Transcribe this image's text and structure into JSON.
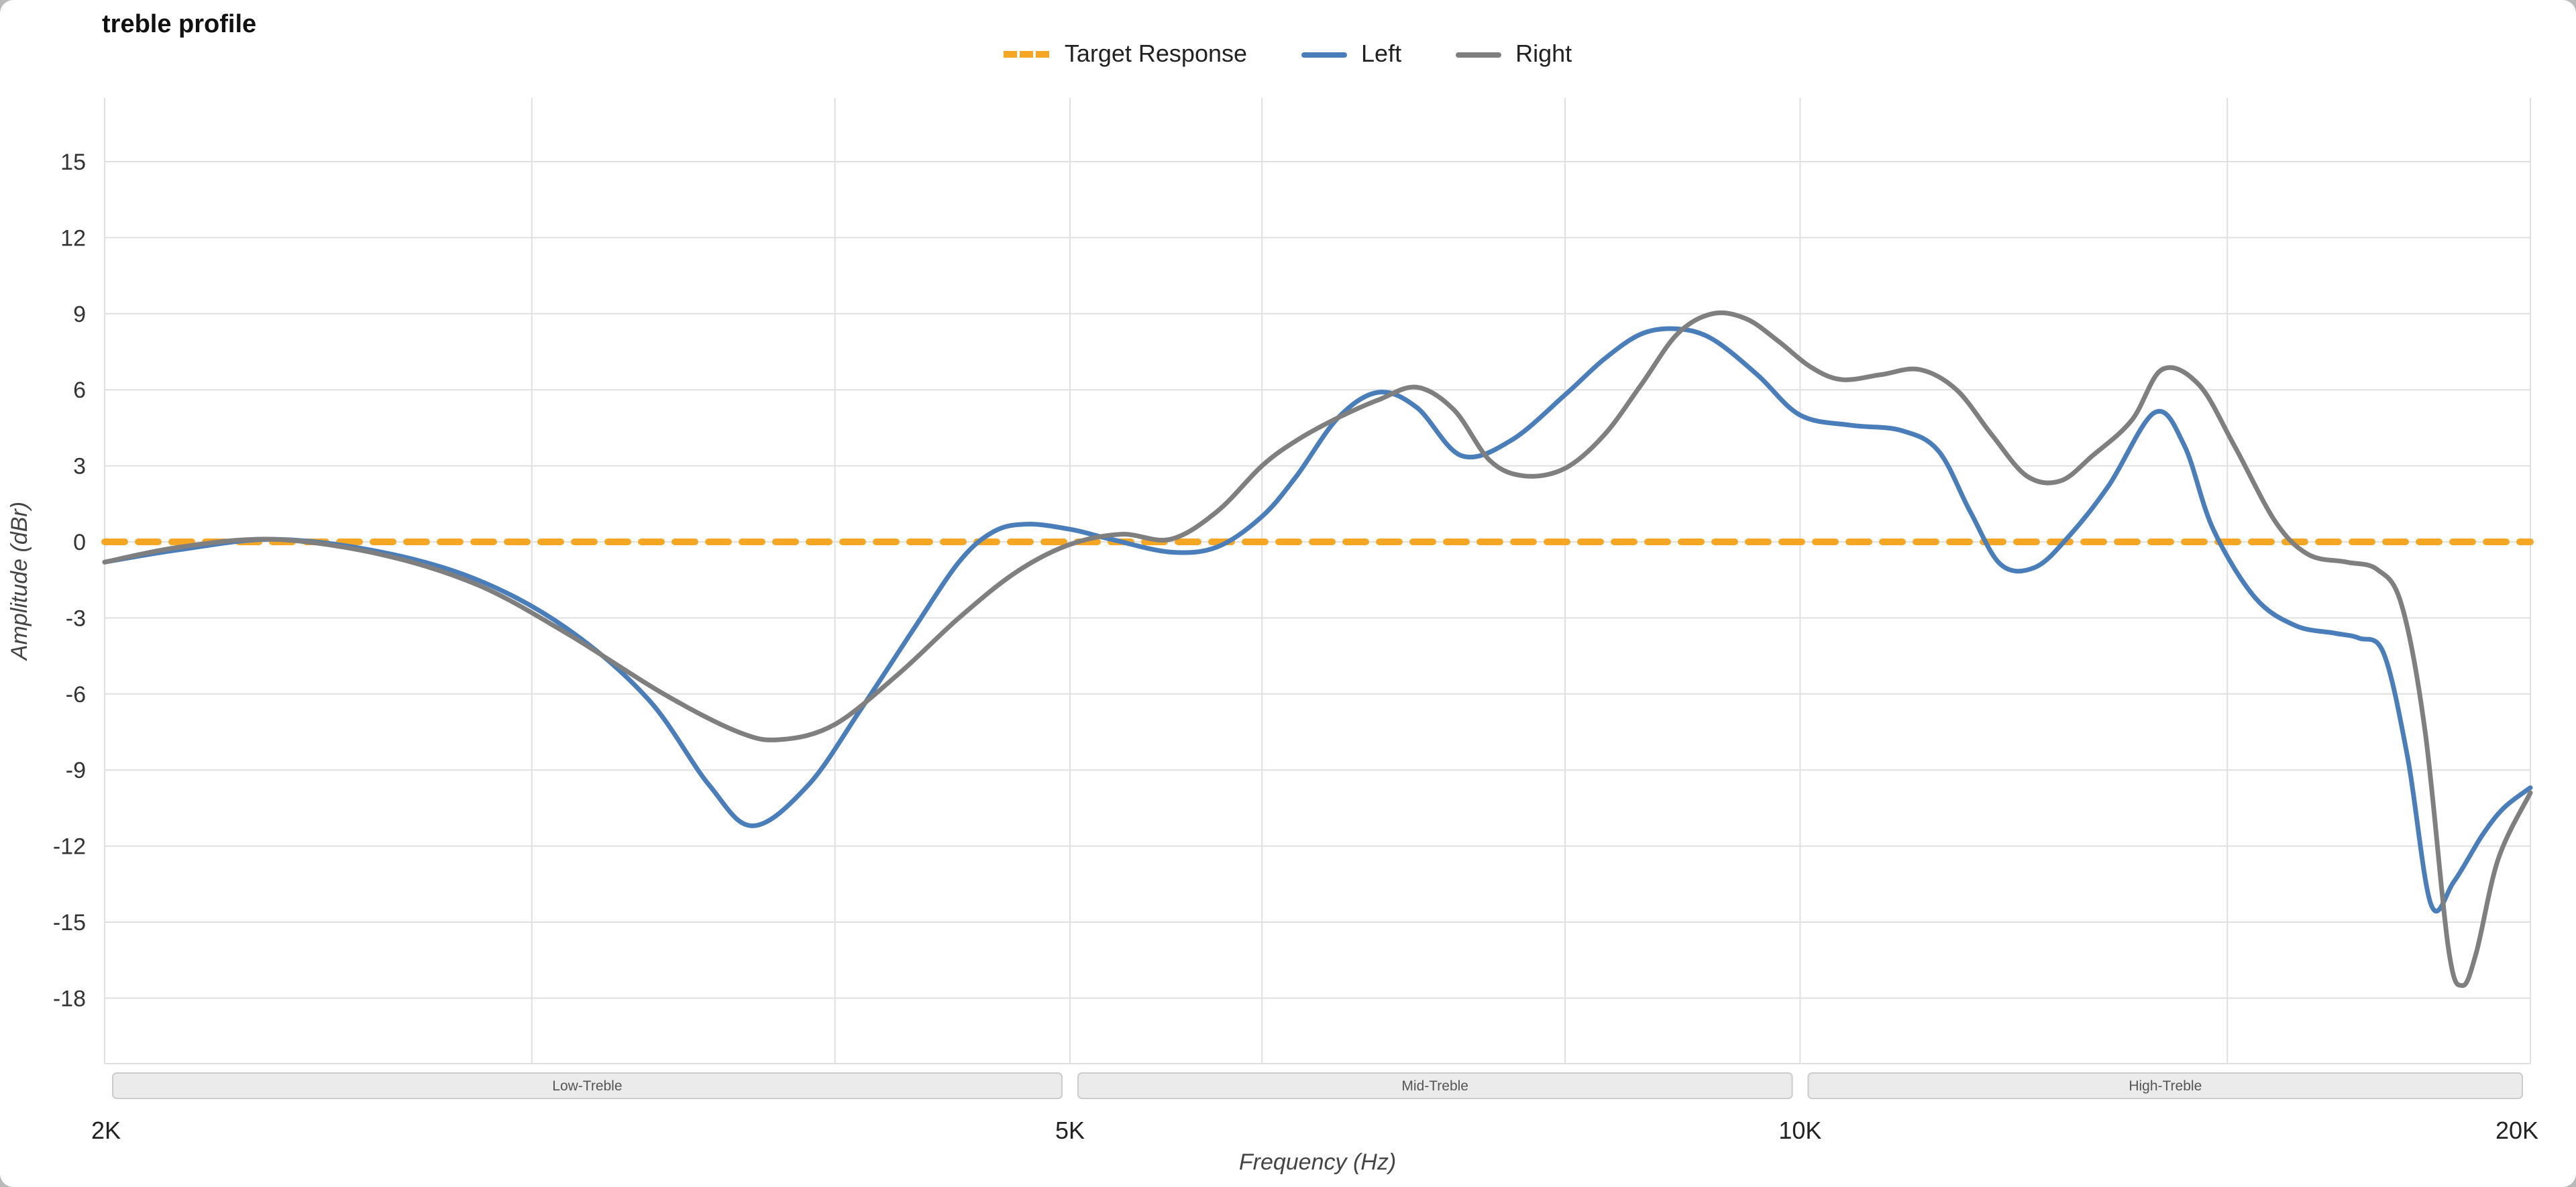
{
  "page": {
    "title": "treble profile"
  },
  "colors": {
    "target": "#F5A623",
    "left": "#4A7EBB",
    "right": "#7F7F7F",
    "gridline": "#E0E0E0",
    "band_fill": "#EBEBEB",
    "band_border": "#CCCCCC",
    "background": "#FFFFFF"
  },
  "legend": {
    "items": [
      {
        "label": "Target Response",
        "color": "#F5A623",
        "line_style": "dashed"
      },
      {
        "label": "Left",
        "color": "#4A7EBB",
        "line_style": "solid"
      },
      {
        "label": "Right",
        "color": "#7F7F7F",
        "line_style": "solid"
      }
    ]
  },
  "chart_data": {
    "type": "line",
    "title": "treble profile",
    "xlabel": "Frequency (Hz)",
    "ylabel": "Amplitude (dBr)",
    "x_scale": "log",
    "grid": true,
    "legend_position": "top-center",
    "x_range_hz": [
      2000,
      20000
    ],
    "y_ticks_db": [
      15,
      12,
      9,
      6,
      3,
      0,
      -3,
      -6,
      -9,
      -12,
      -15,
      -18
    ],
    "x_ticks": [
      {
        "hz": 2000,
        "label": "2K"
      },
      {
        "hz": 5000,
        "label": "5K"
      },
      {
        "hz": 10000,
        "label": "10K"
      },
      {
        "hz": 20000,
        "label": "20K"
      }
    ],
    "x_gridlines_hz": [
      2000,
      3000,
      4000,
      5000,
      6000,
      8000,
      10000,
      15000,
      20000
    ],
    "bands": [
      {
        "label": "Low-Treble",
        "from_hz": 2000,
        "to_hz": 5000
      },
      {
        "label": "Mid-Treble",
        "from_hz": 5000,
        "to_hz": 10000
      },
      {
        "label": "High-Treble",
        "from_hz": 10000,
        "to_hz": 20000
      }
    ],
    "series": [
      {
        "name": "Target Response",
        "color": "#F5A623",
        "dash": [
          15,
          10
        ],
        "width": 5,
        "points_hz_db": [
          [
            2000,
            0
          ],
          [
            20000,
            0
          ]
        ]
      },
      {
        "name": "Left",
        "color": "#4A7EBB",
        "dash": null,
        "width": 3.5,
        "points_hz_db": [
          [
            2000,
            -0.8
          ],
          [
            2150,
            -0.3
          ],
          [
            2350,
            0.1
          ],
          [
            2600,
            -0.4
          ],
          [
            2850,
            -1.5
          ],
          [
            3100,
            -3.4
          ],
          [
            3350,
            -6.2
          ],
          [
            3550,
            -9.6
          ],
          [
            3700,
            -11.2
          ],
          [
            3900,
            -9.6
          ],
          [
            4100,
            -6.6
          ],
          [
            4300,
            -3.6
          ],
          [
            4500,
            -0.8
          ],
          [
            4650,
            0.4
          ],
          [
            4800,
            0.7
          ],
          [
            5000,
            0.5
          ],
          [
            5200,
            0.1
          ],
          [
            5500,
            -0.4
          ],
          [
            5750,
            -0.2
          ],
          [
            6000,
            1.0
          ],
          [
            6200,
            2.6
          ],
          [
            6450,
            4.9
          ],
          [
            6700,
            5.9
          ],
          [
            6950,
            5.3
          ],
          [
            7250,
            3.4
          ],
          [
            7600,
            4.0
          ],
          [
            8000,
            5.8
          ],
          [
            8300,
            7.2
          ],
          [
            8600,
            8.2
          ],
          [
            8900,
            8.4
          ],
          [
            9200,
            8.0
          ],
          [
            9600,
            6.6
          ],
          [
            10000,
            5.0
          ],
          [
            10500,
            4.6
          ],
          [
            11000,
            4.4
          ],
          [
            11400,
            3.6
          ],
          [
            11750,
            1.2
          ],
          [
            12100,
            -0.9
          ],
          [
            12500,
            -1.0
          ],
          [
            12900,
            0.2
          ],
          [
            13400,
            2.2
          ],
          [
            14000,
            5.1
          ],
          [
            14400,
            3.8
          ],
          [
            14800,
            0.5
          ],
          [
            15400,
            -2.2
          ],
          [
            16000,
            -3.3
          ],
          [
            16600,
            -3.6
          ],
          [
            17000,
            -3.8
          ],
          [
            17400,
            -4.4
          ],
          [
            17800,
            -8.5
          ],
          [
            18200,
            -14.3
          ],
          [
            18600,
            -13.4
          ],
          [
            19100,
            -11.6
          ],
          [
            19500,
            -10.5
          ],
          [
            20000,
            -9.7
          ]
        ]
      },
      {
        "name": "Right",
        "color": "#7F7F7F",
        "dash": null,
        "width": 3.5,
        "points_hz_db": [
          [
            2000,
            -0.8
          ],
          [
            2150,
            -0.2
          ],
          [
            2350,
            0.1
          ],
          [
            2600,
            -0.5
          ],
          [
            2850,
            -1.7
          ],
          [
            3100,
            -3.6
          ],
          [
            3400,
            -6.0
          ],
          [
            3650,
            -7.5
          ],
          [
            3800,
            -7.8
          ],
          [
            4000,
            -7.2
          ],
          [
            4250,
            -5.2
          ],
          [
            4500,
            -3.0
          ],
          [
            4750,
            -1.2
          ],
          [
            5000,
            -0.1
          ],
          [
            5250,
            0.3
          ],
          [
            5500,
            0.1
          ],
          [
            5750,
            1.2
          ],
          [
            6000,
            3.0
          ],
          [
            6200,
            4.0
          ],
          [
            6450,
            4.9
          ],
          [
            6700,
            5.6
          ],
          [
            6950,
            6.1
          ],
          [
            7200,
            5.2
          ],
          [
            7450,
            3.2
          ],
          [
            7700,
            2.6
          ],
          [
            8000,
            2.9
          ],
          [
            8300,
            4.2
          ],
          [
            8600,
            6.2
          ],
          [
            8900,
            8.2
          ],
          [
            9200,
            9.0
          ],
          [
            9500,
            8.8
          ],
          [
            9800,
            7.9
          ],
          [
            10100,
            6.9
          ],
          [
            10400,
            6.4
          ],
          [
            10800,
            6.6
          ],
          [
            11200,
            6.8
          ],
          [
            11600,
            6.0
          ],
          [
            12000,
            4.2
          ],
          [
            12400,
            2.6
          ],
          [
            12800,
            2.4
          ],
          [
            13200,
            3.4
          ],
          [
            13700,
            4.8
          ],
          [
            14100,
            6.8
          ],
          [
            14600,
            6.2
          ],
          [
            15100,
            3.8
          ],
          [
            15700,
            0.8
          ],
          [
            16200,
            -0.5
          ],
          [
            16800,
            -0.8
          ],
          [
            17300,
            -1.1
          ],
          [
            17700,
            -2.5
          ],
          [
            18100,
            -7.5
          ],
          [
            18500,
            -16.0
          ],
          [
            18750,
            -17.5
          ],
          [
            19000,
            -16.2
          ],
          [
            19400,
            -12.5
          ],
          [
            20000,
            -9.9
          ]
        ]
      }
    ]
  }
}
